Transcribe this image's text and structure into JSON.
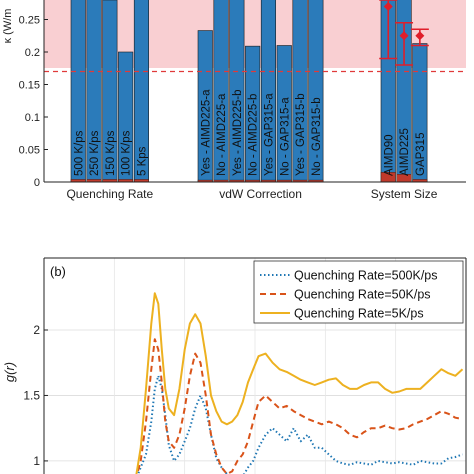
{
  "chart_data": [
    {
      "type": "bar",
      "panel": "a",
      "ylabel": "κ (W/m",
      "ylim": [
        0,
        0.28
      ],
      "yticks": [
        0,
        0.05,
        0.1,
        0.15,
        0.2,
        0.25
      ],
      "ytick_labels": [
        "0",
        "0.05",
        "0.1",
        "0.15",
        "0.2",
        "0.25"
      ],
      "reference_line": 0.17,
      "shaded_region_above": 0.17,
      "bar_color": "#2b7bba",
      "base_color": "#c0392b",
      "groups": [
        {
          "name": "Quenching Rate",
          "bars": [
            {
              "label": "500 K/ps",
              "value": 0.3,
              "base": 0.004
            },
            {
              "label": "250 K/ps",
              "value": 0.3,
              "base": 0.004
            },
            {
              "label": "150 K/ps",
              "value": 0.28,
              "base": 0.004
            },
            {
              "label": "100 K/ps",
              "value": 0.2,
              "base": 0.004
            },
            {
              "label": "5 Kps",
              "value": 0.3,
              "base": 0.004
            }
          ]
        },
        {
          "name": "vdW Correction",
          "bars": [
            {
              "label": "Yes - AIMD225-a",
              "value": 0.233,
              "base": 0.003
            },
            {
              "label": "No - AIMD225-a",
              "value": 0.3,
              "base": 0.003
            },
            {
              "label": "Yes - AIMD225-b",
              "value": 0.3,
              "base": 0.003
            },
            {
              "label": "No - AIMD225-b",
              "value": 0.209,
              "base": 0.003
            },
            {
              "label": "Yes - GAP315-a",
              "value": 0.3,
              "base": 0.003
            },
            {
              "label": "No - GAP315-a",
              "value": 0.21,
              "base": 0.003
            },
            {
              "label": "Yes - GAP315-b",
              "value": 0.3,
              "base": 0.003
            },
            {
              "label": "No - GAP315-b",
              "value": 0.3,
              "base": 0.003
            }
          ]
        },
        {
          "name": "System Size",
          "bars": [
            {
              "label": "AIMD90",
              "value": 0.3,
              "base": 0.015
            },
            {
              "label": "AIMD225",
              "value": 0.3,
              "base": 0.012
            },
            {
              "label": "GAP315",
              "value": 0.213,
              "base": 0.004
            }
          ],
          "markers": [
            {
              "bar": 0,
              "value": 0.27,
              "err_low": 0.19,
              "err_high": 0.28
            },
            {
              "bar": 1,
              "value": 0.225,
              "err_low": 0.18,
              "err_high": 0.245
            },
            {
              "bar": 2,
              "value": 0.225,
              "err_low": 0.21,
              "err_high": 0.235
            }
          ]
        }
      ]
    },
    {
      "type": "line",
      "panel": "b",
      "panel_label": "(b)",
      "ylabel": "g(r)",
      "ylim": [
        0.9,
        2.55
      ],
      "yticks": [
        1,
        1.5,
        2
      ],
      "ytick_labels": [
        "1",
        "1.5",
        "2"
      ],
      "xlim": [
        0,
        12
      ],
      "legend_position": "top-right",
      "grid": true,
      "series": [
        {
          "name": "Quenching Rate=500K/ps",
          "color": "#1f77b4",
          "style": "dotted",
          "x": [
            2.6,
            2.75,
            2.9,
            3.05,
            3.15,
            3.25,
            3.35,
            3.45,
            3.55,
            3.7,
            3.85,
            4.0,
            4.15,
            4.3,
            4.45,
            4.6,
            4.75,
            4.9,
            5.05,
            5.2,
            5.35,
            5.5,
            5.65,
            5.8,
            5.95,
            6.1,
            6.3,
            6.5,
            6.7,
            6.9,
            7.1,
            7.3,
            7.5,
            7.7,
            7.9,
            8.1,
            8.3,
            8.5,
            8.7,
            8.9,
            9.1,
            9.3,
            9.5,
            9.7,
            9.9,
            10.1,
            10.3,
            10.5,
            10.7,
            10.9,
            11.1,
            11.3,
            11.5,
            11.7,
            11.9
          ],
          "values": [
            0.85,
            0.95,
            1.05,
            1.3,
            1.55,
            1.65,
            1.55,
            1.35,
            1.12,
            1.0,
            1.05,
            1.15,
            1.25,
            1.4,
            1.5,
            1.4,
            1.2,
            1.02,
            0.95,
            0.9,
            0.85,
            0.85,
            0.88,
            0.95,
            1.0,
            1.1,
            1.2,
            1.25,
            1.2,
            1.15,
            1.25,
            1.15,
            1.2,
            1.1,
            1.1,
            1.05,
            1.0,
            0.98,
            0.97,
            0.99,
            0.98,
            0.97,
            1.0,
            0.99,
            0.98,
            0.99,
            0.98,
            0.97,
            1.0,
            0.99,
            0.98,
            0.98,
            1.02,
            1.03,
            1.05
          ]
        },
        {
          "name": "Quenching Rate=50K/ps",
          "color": "#d95319",
          "style": "dashed",
          "x": [
            2.6,
            2.75,
            2.9,
            3.05,
            3.15,
            3.25,
            3.35,
            3.45,
            3.55,
            3.7,
            3.85,
            4.0,
            4.15,
            4.3,
            4.45,
            4.6,
            4.75,
            4.9,
            5.05,
            5.2,
            5.35,
            5.5,
            5.65,
            5.8,
            5.95,
            6.1,
            6.3,
            6.5,
            6.7,
            6.9,
            7.1,
            7.3,
            7.5,
            7.7,
            7.9,
            8.1,
            8.3,
            8.5,
            8.7,
            8.9,
            9.1,
            9.3,
            9.5,
            9.7,
            9.9,
            10.1,
            10.3,
            10.5,
            10.7,
            10.9,
            11.1,
            11.3,
            11.5,
            11.7,
            11.9
          ],
          "values": [
            0.85,
            1.0,
            1.3,
            1.7,
            1.93,
            1.85,
            1.6,
            1.3,
            1.15,
            1.1,
            1.2,
            1.4,
            1.65,
            1.82,
            1.75,
            1.5,
            1.2,
            1.05,
            0.95,
            0.9,
            0.92,
            1.0,
            1.05,
            1.15,
            1.3,
            1.45,
            1.5,
            1.45,
            1.4,
            1.42,
            1.38,
            1.35,
            1.32,
            1.3,
            1.28,
            1.3,
            1.28,
            1.25,
            1.2,
            1.18,
            1.22,
            1.25,
            1.25,
            1.27,
            1.25,
            1.24,
            1.25,
            1.28,
            1.3,
            1.32,
            1.35,
            1.38,
            1.36,
            1.33,
            1.32
          ]
        },
        {
          "name": "Quenching Rate=5K/ps",
          "color": "#edb120",
          "style": "solid",
          "x": [
            2.6,
            2.75,
            2.9,
            3.05,
            3.15,
            3.25,
            3.35,
            3.45,
            3.55,
            3.7,
            3.85,
            4.0,
            4.15,
            4.3,
            4.45,
            4.6,
            4.75,
            4.9,
            5.05,
            5.2,
            5.35,
            5.5,
            5.65,
            5.8,
            5.95,
            6.1,
            6.3,
            6.5,
            6.7,
            6.9,
            7.1,
            7.3,
            7.5,
            7.7,
            7.9,
            8.1,
            8.3,
            8.5,
            8.7,
            8.9,
            9.1,
            9.3,
            9.5,
            9.7,
            9.9,
            10.1,
            10.3,
            10.5,
            10.7,
            10.9,
            11.1,
            11.3,
            11.5,
            11.7,
            11.9
          ],
          "values": [
            0.85,
            1.1,
            1.55,
            2.05,
            2.28,
            2.2,
            1.85,
            1.55,
            1.4,
            1.35,
            1.55,
            1.85,
            2.05,
            2.12,
            2.05,
            1.8,
            1.5,
            1.38,
            1.3,
            1.28,
            1.3,
            1.35,
            1.45,
            1.6,
            1.7,
            1.8,
            1.82,
            1.75,
            1.7,
            1.68,
            1.65,
            1.62,
            1.6,
            1.58,
            1.6,
            1.62,
            1.63,
            1.58,
            1.55,
            1.55,
            1.58,
            1.6,
            1.6,
            1.55,
            1.52,
            1.53,
            1.55,
            1.55,
            1.55,
            1.6,
            1.65,
            1.7,
            1.67,
            1.65,
            1.7
          ]
        }
      ]
    }
  ]
}
